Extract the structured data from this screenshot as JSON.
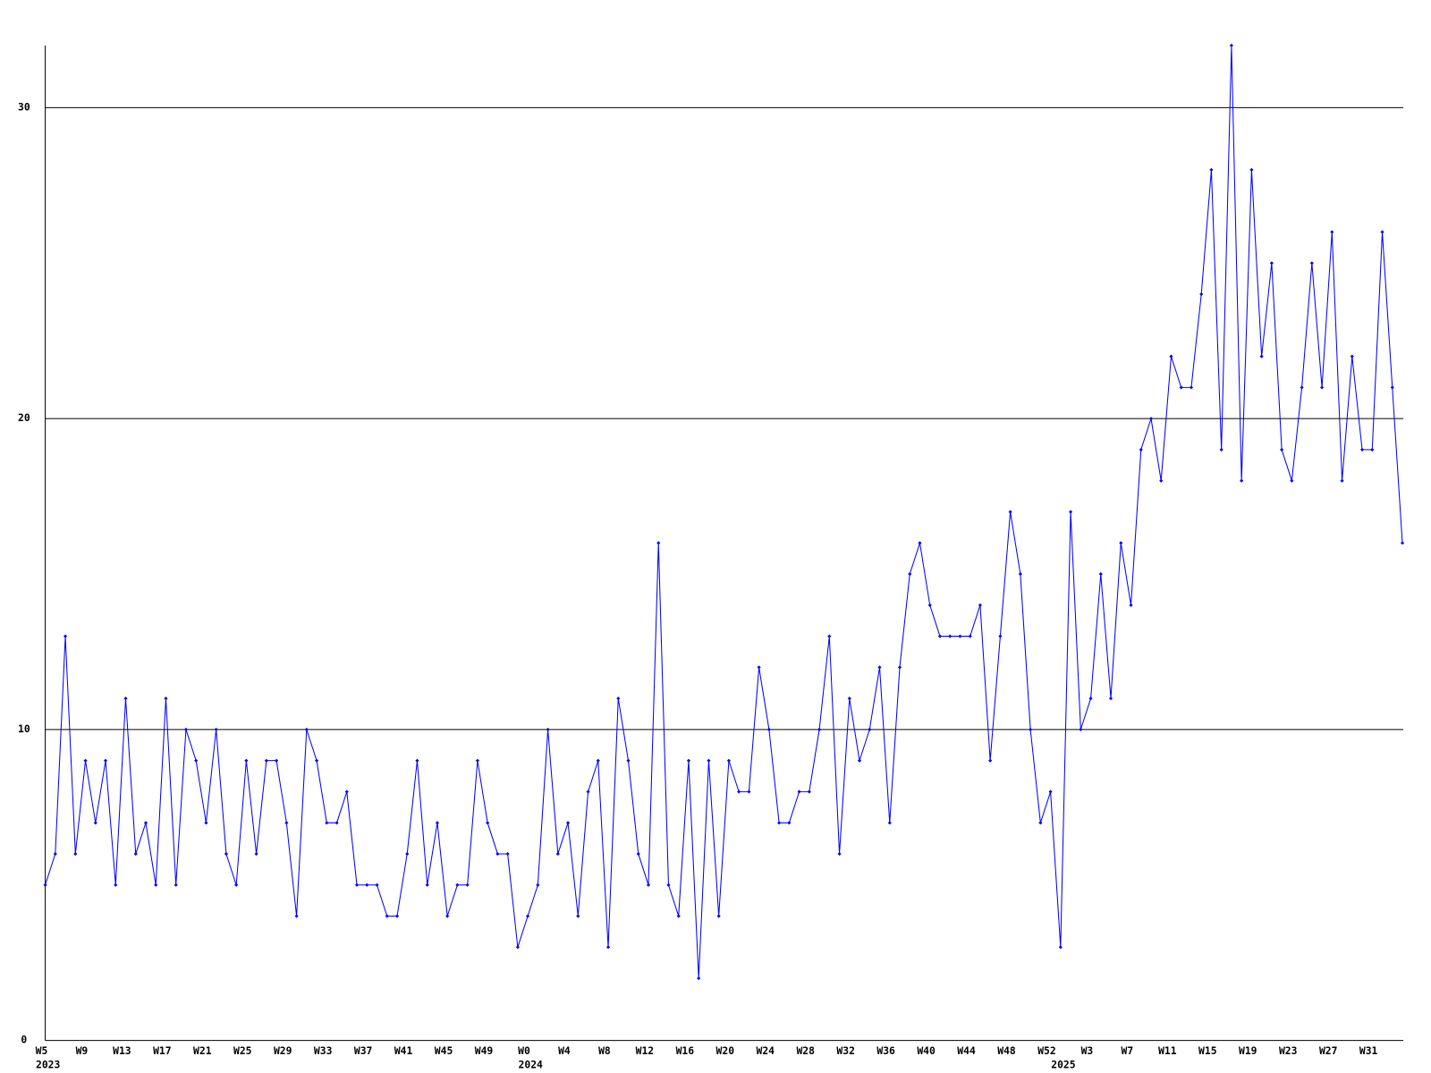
{
  "chart_data": {
    "type": "line",
    "categories": [
      "W5",
      null,
      null,
      null,
      "W9",
      null,
      null,
      null,
      "W13",
      null,
      null,
      null,
      "W17",
      null,
      null,
      null,
      "W21",
      null,
      null,
      null,
      "W25",
      null,
      null,
      null,
      "W29",
      null,
      null,
      null,
      "W33",
      null,
      null,
      null,
      "W37",
      null,
      null,
      null,
      "W41",
      null,
      null,
      null,
      "W45",
      null,
      null,
      null,
      "W49",
      null,
      null,
      null,
      "W0",
      null,
      null,
      null,
      "W4",
      null,
      null,
      null,
      "W8",
      null,
      null,
      null,
      "W12",
      null,
      null,
      null,
      "W16",
      null,
      null,
      null,
      "W20",
      null,
      null,
      null,
      "W24",
      null,
      null,
      null,
      "W28",
      null,
      null,
      null,
      "W32",
      null,
      null,
      null,
      "W36",
      null,
      null,
      null,
      "W40",
      null,
      null,
      null,
      "W44",
      null,
      null,
      null,
      "W48",
      null,
      null,
      null,
      "W52",
      null,
      null,
      null,
      "W3",
      null,
      null,
      null,
      "W7",
      null,
      null,
      null,
      "W11",
      null,
      null,
      null,
      "W15",
      null,
      null,
      null,
      "W19",
      null,
      null,
      null,
      "W23",
      null,
      null,
      null,
      "W27",
      null,
      null,
      null,
      "W31",
      null,
      null,
      null
    ],
    "year_labels": [
      "2023",
      null,
      null,
      null,
      null,
      null,
      null,
      null,
      null,
      null,
      null,
      null,
      null,
      null,
      null,
      null,
      null,
      null,
      null,
      null,
      null,
      null,
      null,
      null,
      null,
      null,
      null,
      null,
      null,
      null,
      null,
      null,
      null,
      null,
      null,
      null,
      null,
      null,
      null,
      null,
      null,
      null,
      null,
      null,
      null,
      null,
      null,
      null,
      "2024",
      null,
      null,
      null,
      null,
      null,
      null,
      null,
      null,
      null,
      null,
      null,
      null,
      null,
      null,
      null,
      null,
      null,
      null,
      null,
      null,
      null,
      null,
      null,
      null,
      null,
      null,
      null,
      null,
      null,
      null,
      null,
      null,
      null,
      null,
      null,
      null,
      null,
      null,
      null,
      null,
      null,
      null,
      null,
      null,
      null,
      null,
      null,
      null,
      null,
      null,
      null,
      null,
      "2025",
      null,
      null,
      null,
      null,
      null,
      null,
      null,
      null,
      null,
      null,
      null,
      null,
      null,
      null,
      null,
      null,
      null,
      null,
      null,
      null,
      null,
      null,
      null,
      null,
      null,
      null,
      null,
      null,
      null,
      null,
      null,
      null,
      null,
      null
    ],
    "series": [
      {
        "color": "#0000ff",
        "values": [
          5,
          6,
          13,
          6,
          9,
          7,
          9,
          5,
          11,
          6,
          7,
          5,
          11,
          5,
          10,
          9,
          7,
          10,
          6,
          5,
          9,
          6,
          9,
          9,
          7,
          4,
          10,
          9,
          7,
          7,
          8,
          5,
          5,
          5,
          4,
          4,
          6,
          9,
          5,
          7,
          4,
          5,
          5,
          9,
          7,
          6,
          6,
          3,
          4,
          5,
          10,
          6,
          7,
          4,
          8,
          9,
          3,
          11,
          9,
          6,
          5,
          16,
          5,
          4,
          9,
          2,
          9,
          4,
          9,
          8,
          8,
          12,
          10,
          7,
          7,
          8,
          8,
          10,
          13,
          6,
          11,
          9,
          10,
          12,
          7,
          12,
          15,
          16,
          14,
          13,
          13,
          13,
          13,
          14,
          9,
          13,
          17,
          15,
          10,
          7,
          8,
          3,
          17,
          10,
          11,
          15,
          11,
          16,
          14,
          19,
          20,
          18,
          22,
          21,
          21,
          24,
          28,
          19,
          32,
          18,
          28,
          22,
          25,
          19,
          18,
          21,
          25,
          21,
          26,
          18,
          22,
          19,
          19,
          26,
          21,
          16
        ]
      }
    ],
    "ylim": [
      0,
      32
    ],
    "yticks": [
      0,
      10,
      20,
      30
    ],
    "grid": true
  }
}
